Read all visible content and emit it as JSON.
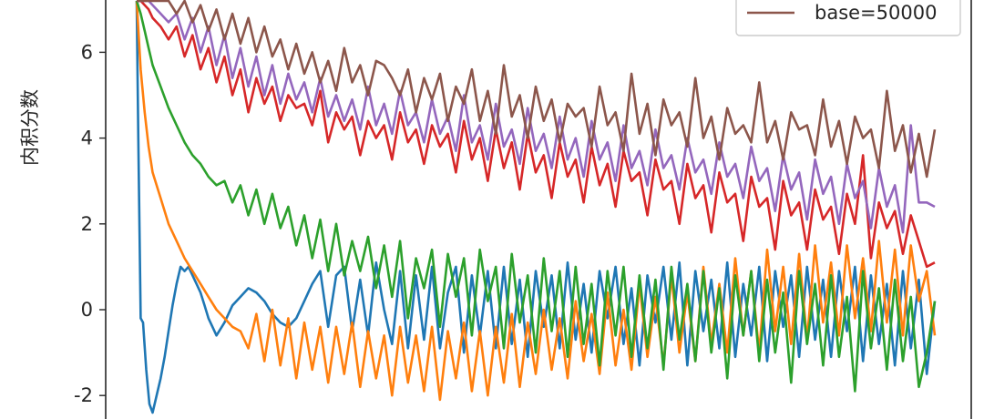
{
  "chart_data": {
    "type": "line",
    "title": "",
    "xlabel": "",
    "ylabel": "内积分数",
    "ylim": [
      -2.45,
      7.25
    ],
    "xlim": [
      0,
      1000
    ],
    "yticks": [
      -2,
      0,
      2,
      4,
      6
    ],
    "ytick_labels": [
      "-2",
      "0",
      "2",
      "4",
      "6"
    ],
    "grid": false,
    "legend_position": "top-right",
    "legend_entries": [
      "base=50000"
    ],
    "series": [
      {
        "color": "#1f77b4",
        "x": [
          0,
          2,
          5,
          8,
          12,
          16,
          20,
          25,
          30,
          35,
          40,
          45,
          50,
          55,
          60,
          65,
          70,
          75,
          80,
          85,
          90,
          95,
          100,
          110,
          120,
          130,
          140,
          150,
          160,
          170,
          180,
          190,
          200,
          210,
          220,
          230,
          240,
          250,
          260,
          270,
          280,
          290,
          300,
          310,
          320,
          330,
          340,
          350,
          360,
          370,
          380,
          390,
          400,
          410,
          420,
          430,
          440,
          450,
          460,
          470,
          480,
          490,
          500,
          510,
          520,
          530,
          540,
          550,
          560,
          570,
          580,
          590,
          600,
          610,
          620,
          630,
          640,
          650,
          660,
          670,
          680,
          690,
          700,
          710,
          720,
          730,
          740,
          750,
          760,
          770,
          780,
          790,
          800,
          810,
          820,
          830,
          840,
          850,
          860,
          870,
          880,
          890,
          900,
          910,
          920,
          930,
          940,
          950,
          960,
          970,
          980,
          990,
          1000
        ],
        "y": [
          7.2,
          4.0,
          -0.2,
          -0.3,
          -1.4,
          -2.2,
          -2.4,
          -2.0,
          -1.6,
          -1.1,
          -0.5,
          0.1,
          0.6,
          1.0,
          0.9,
          1.0,
          0.8,
          0.6,
          0.4,
          0.1,
          -0.2,
          -0.4,
          -0.6,
          -0.3,
          0.1,
          0.3,
          0.5,
          0.4,
          0.2,
          -0.1,
          -0.3,
          -0.4,
          -0.2,
          0.2,
          0.6,
          0.9,
          -0.4,
          0.8,
          1.0,
          -0.5,
          0.7,
          -0.6,
          1.1,
          0.0,
          -0.8,
          0.9,
          -0.9,
          0.8,
          -0.7,
          1.0,
          -0.9,
          0.4,
          1.0,
          -1.0,
          0.8,
          -0.6,
          0.9,
          -0.9,
          1.0,
          -0.8,
          0.7,
          -1.1,
          0.9,
          -0.4,
          0.8,
          -0.9,
          1.1,
          -0.7,
          0.6,
          -1.0,
          0.9,
          -0.2,
          1.0,
          -0.8,
          0.5,
          -1.3,
          0.8,
          -0.3,
          1.0,
          -0.7,
          1.1,
          -1.3,
          0.9,
          -0.5,
          0.7,
          -0.9,
          1.1,
          -1.1,
          0.6,
          -0.6,
          1.0,
          -1.2,
          0.9,
          -0.4,
          0.8,
          -1.1,
          1.0,
          -0.7,
          0.7,
          -1.1,
          0.9,
          -0.5,
          1.0,
          -1.2,
          0.8,
          -0.8,
          0.6,
          -1.3,
          0.9,
          -0.9,
          0.7,
          -1.5,
          0.2
        ]
      },
      {
        "color": "#ff7f0e",
        "x": [
          0,
          5,
          10,
          15,
          20,
          30,
          40,
          50,
          60,
          70,
          80,
          90,
          100,
          110,
          120,
          130,
          140,
          150,
          160,
          170,
          180,
          190,
          200,
          210,
          220,
          230,
          240,
          250,
          260,
          270,
          280,
          290,
          300,
          310,
          320,
          330,
          340,
          350,
          360,
          370,
          380,
          390,
          400,
          410,
          420,
          430,
          440,
          450,
          460,
          470,
          480,
          490,
          500,
          510,
          520,
          530,
          540,
          550,
          560,
          570,
          580,
          590,
          600,
          610,
          620,
          630,
          640,
          650,
          660,
          670,
          680,
          690,
          700,
          710,
          720,
          730,
          740,
          750,
          760,
          770,
          780,
          790,
          800,
          810,
          820,
          830,
          840,
          850,
          860,
          870,
          880,
          890,
          900,
          910,
          920,
          930,
          940,
          950,
          960,
          970,
          980,
          990,
          1000
        ],
        "y": [
          7.2,
          5.6,
          4.6,
          3.8,
          3.2,
          2.6,
          2.0,
          1.6,
          1.2,
          0.9,
          0.6,
          0.3,
          0.0,
          -0.2,
          -0.4,
          -0.5,
          -0.9,
          -0.1,
          -1.2,
          0.0,
          -1.3,
          -0.2,
          -1.6,
          -0.3,
          -1.4,
          -0.4,
          -1.7,
          -0.4,
          -1.5,
          -0.3,
          -1.8,
          -0.5,
          -1.6,
          -0.6,
          -2.0,
          -0.4,
          -1.7,
          -0.6,
          -1.9,
          -0.4,
          -2.1,
          -0.5,
          -1.6,
          -0.3,
          -1.9,
          -0.5,
          -2.0,
          -0.4,
          -1.7,
          -0.1,
          -1.8,
          -0.3,
          -1.5,
          0.0,
          -1.4,
          -0.2,
          -1.6,
          0.2,
          -1.2,
          -0.1,
          -1.5,
          0.4,
          -1.3,
          0.0,
          -1.4,
          0.6,
          -1.1,
          0.3,
          -1.3,
          0.8,
          -1.0,
          0.4,
          -1.2,
          1.0,
          -0.8,
          0.6,
          -1.0,
          1.2,
          -0.6,
          0.9,
          -1.0,
          1.4,
          -0.5,
          1.0,
          -0.8,
          1.3,
          -0.7,
          1.5,
          -0.3,
          1.1,
          -0.6,
          1.5,
          -0.2,
          1.2,
          -0.5,
          1.6,
          -0.3,
          1.4,
          -0.6,
          1.5,
          0.2,
          0.9,
          -0.6
        ]
      },
      {
        "color": "#2ca02c",
        "x": [
          0,
          5,
          10,
          15,
          20,
          30,
          40,
          50,
          60,
          70,
          80,
          90,
          100,
          110,
          120,
          130,
          140,
          150,
          160,
          170,
          180,
          190,
          200,
          210,
          220,
          230,
          240,
          250,
          260,
          270,
          280,
          290,
          300,
          310,
          320,
          330,
          340,
          350,
          360,
          370,
          380,
          390,
          400,
          410,
          420,
          430,
          440,
          450,
          460,
          470,
          480,
          490,
          500,
          510,
          520,
          530,
          540,
          550,
          560,
          570,
          580,
          590,
          600,
          610,
          620,
          630,
          640,
          650,
          660,
          670,
          680,
          690,
          700,
          710,
          720,
          730,
          740,
          750,
          760,
          770,
          780,
          790,
          800,
          810,
          820,
          830,
          840,
          850,
          860,
          870,
          880,
          890,
          900,
          910,
          920,
          930,
          940,
          950,
          960,
          970,
          980,
          990,
          1000
        ],
        "y": [
          7.2,
          6.9,
          6.5,
          6.1,
          5.7,
          5.2,
          4.7,
          4.3,
          3.9,
          3.6,
          3.4,
          3.1,
          2.9,
          3.0,
          2.5,
          2.9,
          2.2,
          2.8,
          2.0,
          2.7,
          1.9,
          2.4,
          1.5,
          2.2,
          1.2,
          2.1,
          0.9,
          2.0,
          0.8,
          1.6,
          0.9,
          1.7,
          0.5,
          1.5,
          0.3,
          1.6,
          -0.2,
          1.2,
          0.5,
          1.4,
          -0.4,
          1.3,
          0.3,
          1.2,
          -0.6,
          1.4,
          0.2,
          1.0,
          -0.9,
          1.3,
          -0.3,
          0.8,
          -1.0,
          1.2,
          -0.5,
          0.9,
          -1.1,
          1.0,
          -0.8,
          0.6,
          -1.3,
          0.9,
          -0.6,
          1.0,
          -1.1,
          0.8,
          -0.9,
          0.7,
          -1.4,
          1.0,
          -0.7,
          0.6,
          -1.2,
          0.9,
          -1.0,
          0.5,
          -1.6,
          0.8,
          -0.6,
          0.9,
          -1.2,
          0.7,
          -1.0,
          0.4,
          -1.7,
          0.9,
          -0.8,
          0.6,
          -1.3,
          0.8,
          -1.1,
          0.3,
          -1.9,
          0.9,
          -0.9,
          0.5,
          -1.4,
          0.7,
          -1.2,
          0.3,
          -1.8,
          -1.0,
          0.2
        ]
      },
      {
        "color": "#d62728",
        "x": [
          0,
          5,
          10,
          15,
          20,
          30,
          40,
          50,
          60,
          70,
          80,
          90,
          100,
          110,
          120,
          130,
          140,
          150,
          160,
          170,
          180,
          190,
          200,
          210,
          220,
          230,
          240,
          250,
          260,
          270,
          280,
          290,
          300,
          310,
          320,
          330,
          340,
          350,
          360,
          370,
          380,
          390,
          400,
          410,
          420,
          430,
          440,
          450,
          460,
          470,
          480,
          490,
          500,
          510,
          520,
          530,
          540,
          550,
          560,
          570,
          580,
          590,
          600,
          610,
          620,
          630,
          640,
          650,
          660,
          670,
          680,
          690,
          700,
          710,
          720,
          730,
          740,
          750,
          760,
          770,
          780,
          790,
          800,
          810,
          820,
          830,
          840,
          850,
          860,
          870,
          880,
          890,
          900,
          910,
          920,
          930,
          940,
          950,
          960,
          970,
          980,
          990,
          1000
        ],
        "y": [
          7.2,
          7.2,
          7.1,
          7.0,
          6.8,
          6.6,
          6.3,
          6.6,
          5.9,
          6.4,
          5.6,
          6.1,
          5.3,
          5.9,
          5.0,
          5.6,
          4.6,
          5.4,
          4.8,
          5.2,
          4.4,
          5.0,
          4.7,
          4.8,
          4.3,
          5.1,
          3.9,
          4.6,
          4.2,
          4.5,
          3.6,
          4.4,
          4.0,
          4.3,
          3.5,
          4.6,
          3.9,
          4.2,
          3.4,
          4.3,
          3.8,
          4.1,
          3.2,
          4.4,
          3.5,
          4.0,
          3.0,
          4.2,
          3.3,
          3.9,
          2.8,
          4.1,
          3.2,
          3.6,
          2.6,
          3.9,
          3.1,
          3.5,
          2.5,
          3.8,
          2.9,
          3.4,
          2.4,
          3.7,
          3.0,
          3.2,
          2.2,
          3.5,
          2.8,
          3.0,
          2.0,
          3.4,
          2.6,
          2.9,
          1.8,
          3.2,
          2.5,
          2.7,
          1.6,
          3.1,
          2.4,
          2.6,
          1.4,
          3.0,
          2.2,
          2.5,
          1.4,
          2.8,
          2.1,
          2.4,
          1.3,
          2.7,
          2.0,
          3.6,
          1.2,
          2.5,
          1.9,
          2.3,
          1.3,
          2.2,
          1.6,
          1.0,
          1.1
        ]
      },
      {
        "color": "#9467bd",
        "x": [
          0,
          5,
          10,
          15,
          20,
          30,
          40,
          50,
          60,
          70,
          80,
          90,
          100,
          110,
          120,
          130,
          140,
          150,
          160,
          170,
          180,
          190,
          200,
          210,
          220,
          230,
          240,
          250,
          260,
          270,
          280,
          290,
          300,
          310,
          320,
          330,
          340,
          350,
          360,
          370,
          380,
          390,
          400,
          410,
          420,
          430,
          440,
          450,
          460,
          470,
          480,
          490,
          500,
          510,
          520,
          530,
          540,
          550,
          560,
          570,
          580,
          590,
          600,
          610,
          620,
          630,
          640,
          650,
          660,
          670,
          680,
          690,
          700,
          710,
          720,
          730,
          740,
          750,
          760,
          770,
          780,
          790,
          800,
          810,
          820,
          830,
          840,
          850,
          860,
          870,
          880,
          890,
          900,
          910,
          920,
          930,
          940,
          950,
          960,
          970,
          980,
          990,
          1000
        ],
        "y": [
          7.2,
          7.2,
          7.2,
          7.2,
          7.1,
          6.9,
          6.7,
          6.9,
          6.3,
          6.8,
          6.0,
          6.6,
          5.7,
          6.4,
          5.4,
          6.1,
          5.2,
          5.9,
          5.0,
          5.7,
          4.8,
          5.5,
          4.9,
          5.3,
          4.6,
          5.4,
          4.5,
          5.0,
          4.4,
          4.9,
          4.2,
          5.2,
          4.3,
          4.8,
          4.1,
          5.1,
          4.3,
          4.6,
          3.9,
          4.9,
          4.1,
          4.5,
          3.7,
          5.0,
          3.9,
          4.3,
          3.5,
          4.8,
          3.8,
          4.2,
          3.4,
          4.7,
          3.7,
          4.1,
          3.3,
          4.5,
          3.5,
          4.0,
          3.1,
          4.4,
          3.5,
          3.9,
          3.0,
          4.3,
          3.3,
          3.7,
          2.9,
          4.2,
          3.3,
          3.6,
          2.8,
          4.0,
          3.2,
          3.5,
          2.7,
          3.9,
          3.1,
          3.4,
          2.6,
          3.8,
          3.0,
          3.3,
          2.3,
          3.6,
          2.8,
          3.2,
          2.1,
          3.5,
          2.7,
          3.1,
          2.0,
          3.4,
          2.6,
          3.0,
          1.9,
          3.3,
          2.4,
          2.9,
          1.8,
          4.3,
          2.5,
          2.5,
          2.4
        ]
      },
      {
        "name": "base=50000",
        "color": "#8c564b",
        "x": [
          0,
          5,
          10,
          20,
          30,
          40,
          50,
          60,
          70,
          80,
          90,
          100,
          110,
          120,
          130,
          140,
          150,
          160,
          170,
          180,
          190,
          200,
          210,
          220,
          230,
          240,
          250,
          260,
          270,
          280,
          290,
          300,
          310,
          320,
          330,
          340,
          350,
          360,
          370,
          380,
          390,
          400,
          410,
          420,
          430,
          440,
          450,
          460,
          470,
          480,
          490,
          500,
          510,
          520,
          530,
          540,
          550,
          560,
          570,
          580,
          590,
          600,
          610,
          620,
          630,
          640,
          650,
          660,
          670,
          680,
          690,
          700,
          710,
          720,
          730,
          740,
          750,
          760,
          770,
          780,
          790,
          800,
          810,
          820,
          830,
          840,
          850,
          860,
          870,
          880,
          890,
          900,
          910,
          920,
          930,
          940,
          950,
          960,
          970,
          980,
          990,
          1000
        ],
        "y": [
          7.2,
          7.2,
          7.2,
          7.2,
          7.2,
          7.2,
          6.9,
          7.2,
          6.7,
          7.1,
          6.5,
          7.0,
          6.3,
          6.9,
          6.2,
          6.8,
          6.0,
          6.6,
          5.9,
          6.3,
          5.6,
          6.2,
          5.5,
          6.0,
          5.3,
          5.8,
          5.1,
          6.1,
          5.3,
          5.7,
          5.0,
          5.8,
          5.7,
          5.4,
          5.0,
          5.6,
          4.6,
          5.4,
          4.9,
          5.5,
          4.4,
          5.2,
          4.8,
          5.6,
          4.4,
          5.1,
          4.1,
          5.7,
          4.5,
          5.0,
          4.0,
          5.2,
          4.4,
          4.9,
          3.9,
          4.8,
          4.5,
          4.7,
          3.8,
          5.2,
          4.3,
          4.6,
          3.7,
          5.5,
          4.1,
          4.8,
          3.6,
          4.9,
          4.3,
          4.6,
          3.8,
          5.4,
          4.0,
          4.5,
          3.5,
          4.7,
          4.1,
          4.3,
          3.9,
          5.3,
          3.9,
          4.4,
          3.5,
          4.6,
          4.2,
          4.3,
          3.6,
          4.9,
          3.8,
          4.4,
          3.4,
          4.5,
          4.0,
          4.2,
          3.3,
          5.1,
          3.7,
          4.3,
          3.2,
          4.1,
          3.1,
          4.2
        ]
      }
    ]
  }
}
